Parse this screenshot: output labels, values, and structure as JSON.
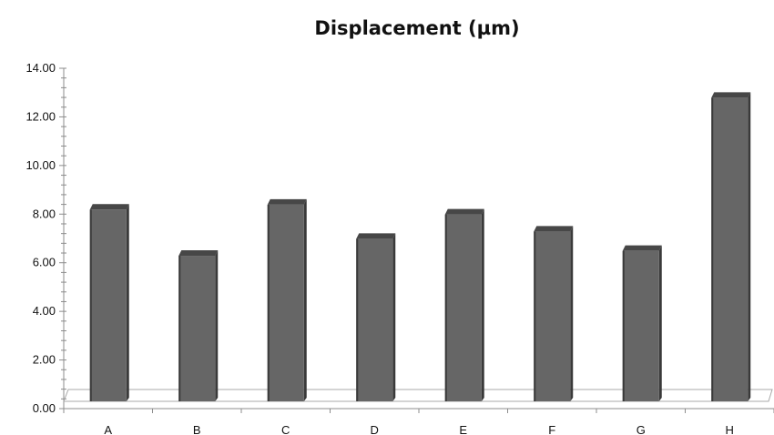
{
  "chart_data": {
    "type": "bar",
    "title": "Displacement  (µm)",
    "categories": [
      "A",
      "B",
      "C",
      "D",
      "E",
      "F",
      "G",
      "H"
    ],
    "values": [
      8.3,
      6.4,
      8.5,
      7.1,
      8.1,
      7.4,
      6.6,
      12.9
    ],
    "ylim": [
      0,
      14
    ],
    "y_ticks": [
      "0.00",
      "2.00",
      "4.00",
      "6.00",
      "8.00",
      "10.00",
      "12.00",
      "14.00"
    ],
    "xlabel": "",
    "ylabel": "",
    "grid": false,
    "legend": "none",
    "colors": {
      "bar_front": "#666666",
      "bar_side": "#3a3a3a",
      "bar_top": "#474747",
      "axis": "#8c8c8c",
      "floor": "#a8a8a8"
    }
  }
}
